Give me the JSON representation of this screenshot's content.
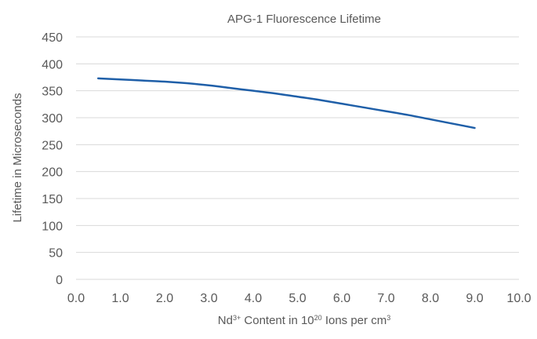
{
  "chart_data": {
    "type": "line",
    "title": "APG-1 Fluorescence Lifetime",
    "xlabel": {
      "parts": [
        {
          "text": "Nd",
          "sup": false
        },
        {
          "text": "3+",
          "sup": true
        },
        {
          "text": " Content in 10",
          "sup": false
        },
        {
          "text": "20",
          "sup": true
        },
        {
          "text": " Ions per cm",
          "sup": false
        },
        {
          "text": "3",
          "sup": true
        }
      ]
    },
    "ylabel": "Lifetime in Microseconds",
    "xlim": [
      0,
      10
    ],
    "ylim": [
      0,
      450
    ],
    "x_ticks": [
      "0.0",
      "1.0",
      "2.0",
      "3.0",
      "4.0",
      "5.0",
      "6.0",
      "7.0",
      "8.0",
      "9.0",
      "10.0"
    ],
    "x_tick_values": [
      0,
      1,
      2,
      3,
      4,
      5,
      6,
      7,
      8,
      9,
      10
    ],
    "y_ticks": [
      "0",
      "50",
      "100",
      "150",
      "200",
      "250",
      "300",
      "350",
      "400",
      "450"
    ],
    "y_tick_values": [
      0,
      50,
      100,
      150,
      200,
      250,
      300,
      350,
      400,
      450
    ],
    "grid": "horizontal",
    "legend": "none",
    "series": [
      {
        "color": "#1f5fa8",
        "x": [
          0.5,
          1.0,
          1.5,
          2.0,
          2.5,
          3.0,
          3.5,
          4.0,
          4.5,
          5.0,
          5.5,
          6.0,
          6.5,
          7.0,
          7.5,
          8.0,
          8.5,
          9.0
        ],
        "y": [
          373,
          371,
          369,
          367,
          364,
          360,
          355,
          350,
          345,
          339,
          333,
          326,
          319,
          312,
          305,
          297,
          289,
          281
        ]
      }
    ]
  }
}
